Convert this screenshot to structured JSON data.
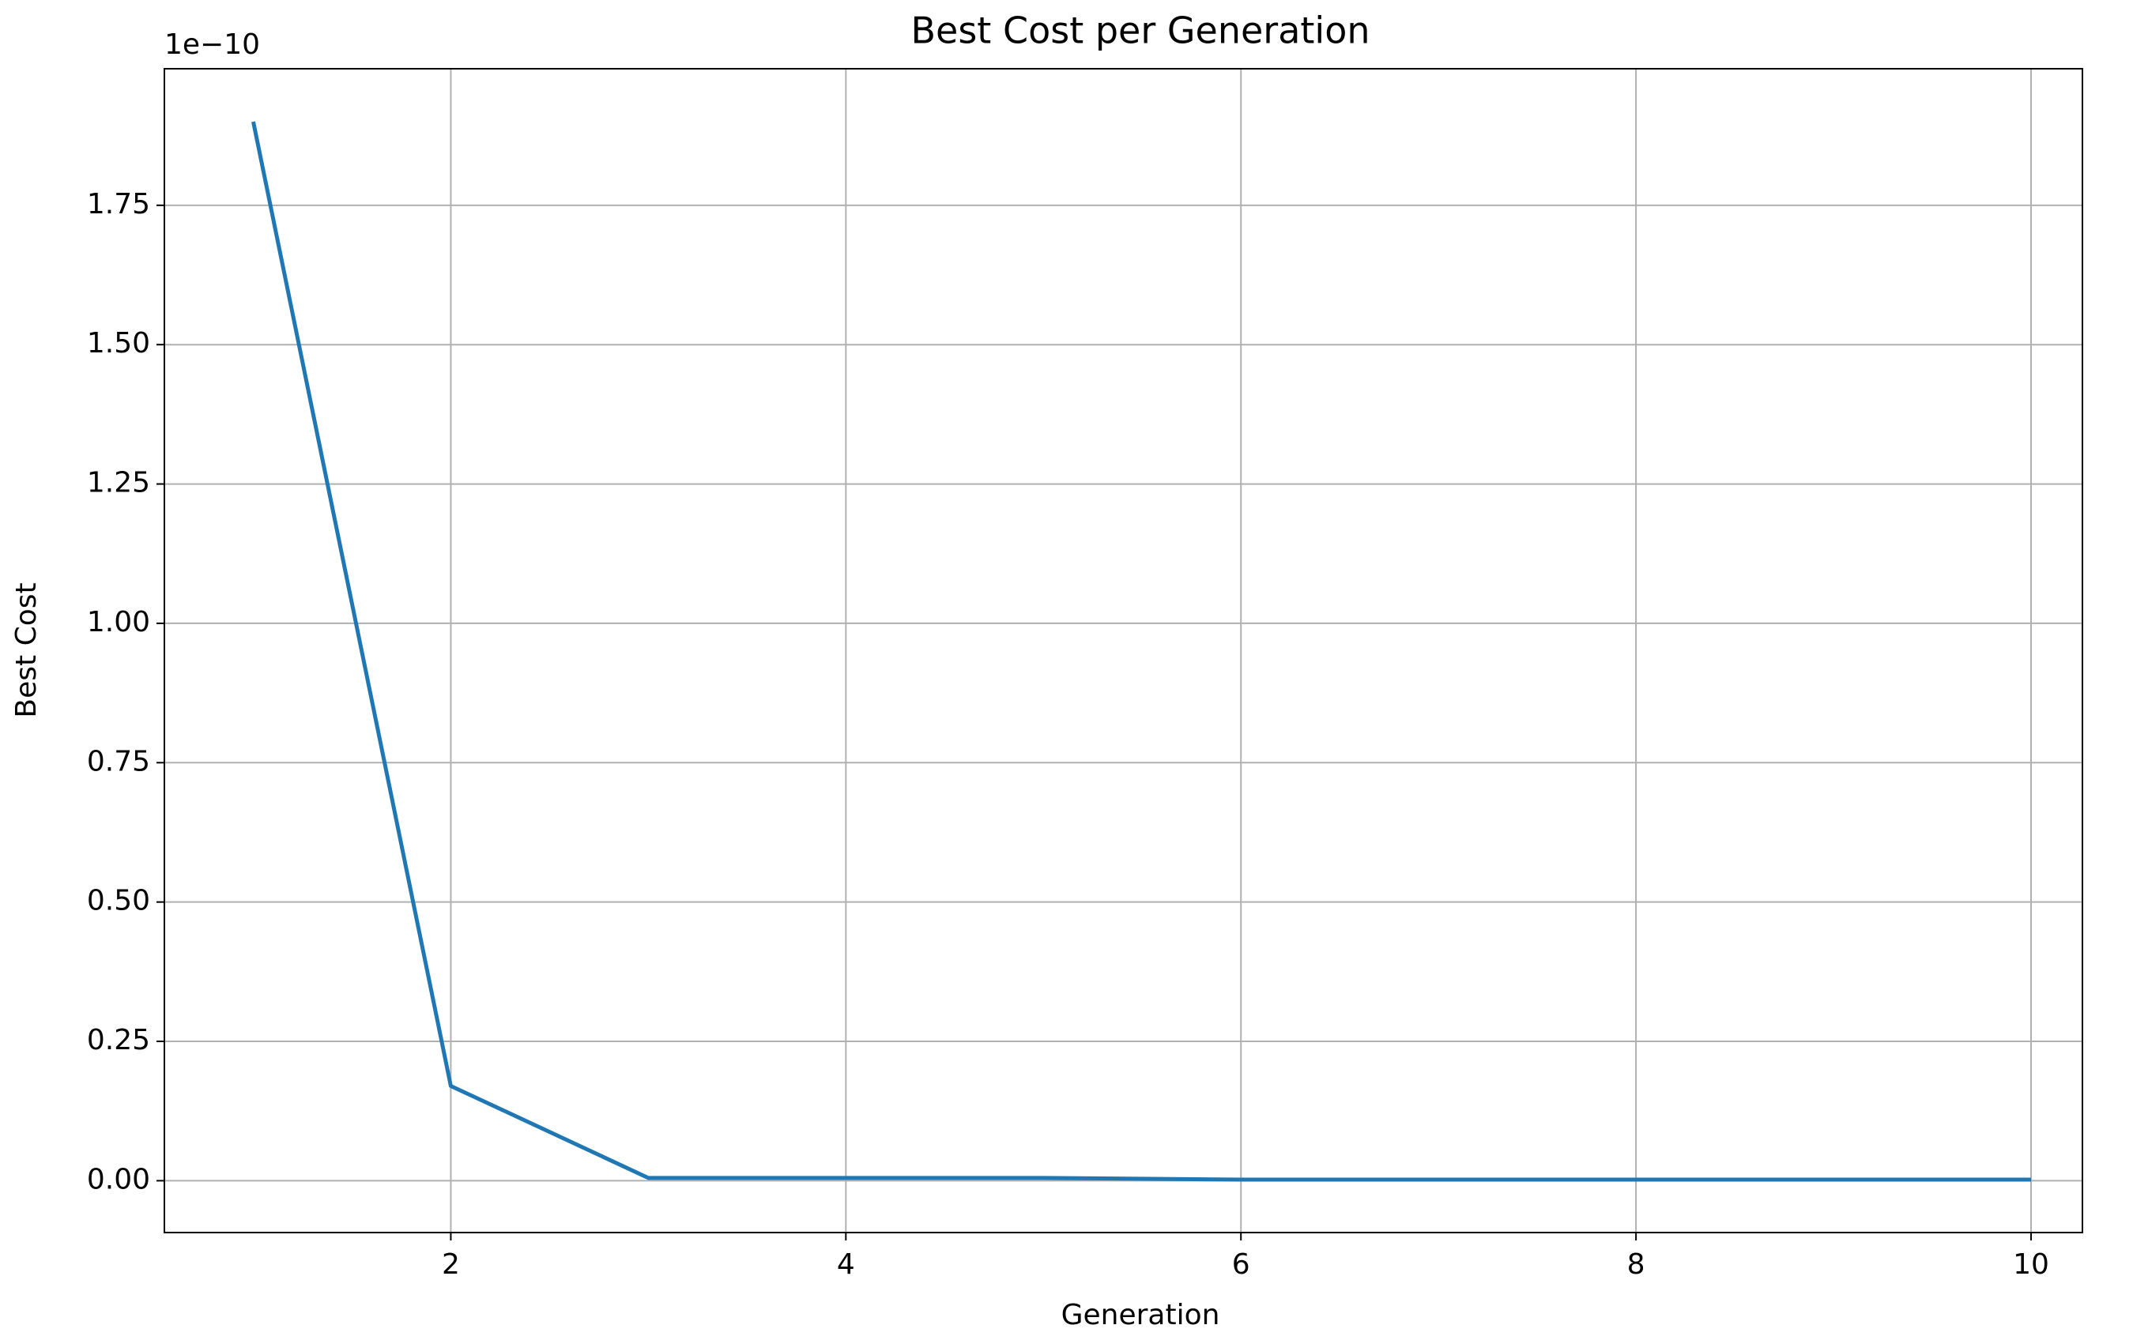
{
  "chart_data": {
    "type": "line",
    "title": "Best Cost per Generation",
    "x_label": "Generation",
    "y_label": "Best Cost",
    "y_offset_label": "1e−10",
    "x": [
      1,
      2,
      3,
      4,
      5,
      6,
      7,
      8,
      9,
      10
    ],
    "series": [
      {
        "name": "Best Cost",
        "color": "#1f77b4",
        "values": [
          1.9,
          0.17,
          0.005,
          0.005,
          0.005,
          0.002,
          0.002,
          0.002,
          0.002,
          0.002
        ]
      }
    ],
    "xlim": [
      0.55,
      10.26
    ],
    "ylim": [
      -0.093,
      1.995
    ],
    "xticks": [
      2,
      4,
      6,
      8,
      10
    ],
    "yticks": [
      {
        "value": 0,
        "label": "0.00"
      },
      {
        "value": 0.25,
        "label": "0.25"
      },
      {
        "value": 0.5,
        "label": "0.50"
      },
      {
        "value": 0.75,
        "label": "0.75"
      },
      {
        "value": 1,
        "label": "1.00"
      },
      {
        "value": 1.25,
        "label": "1.25"
      },
      {
        "value": 1.5,
        "label": "1.50"
      },
      {
        "value": 1.75,
        "label": "1.75"
      }
    ],
    "grid": true
  }
}
